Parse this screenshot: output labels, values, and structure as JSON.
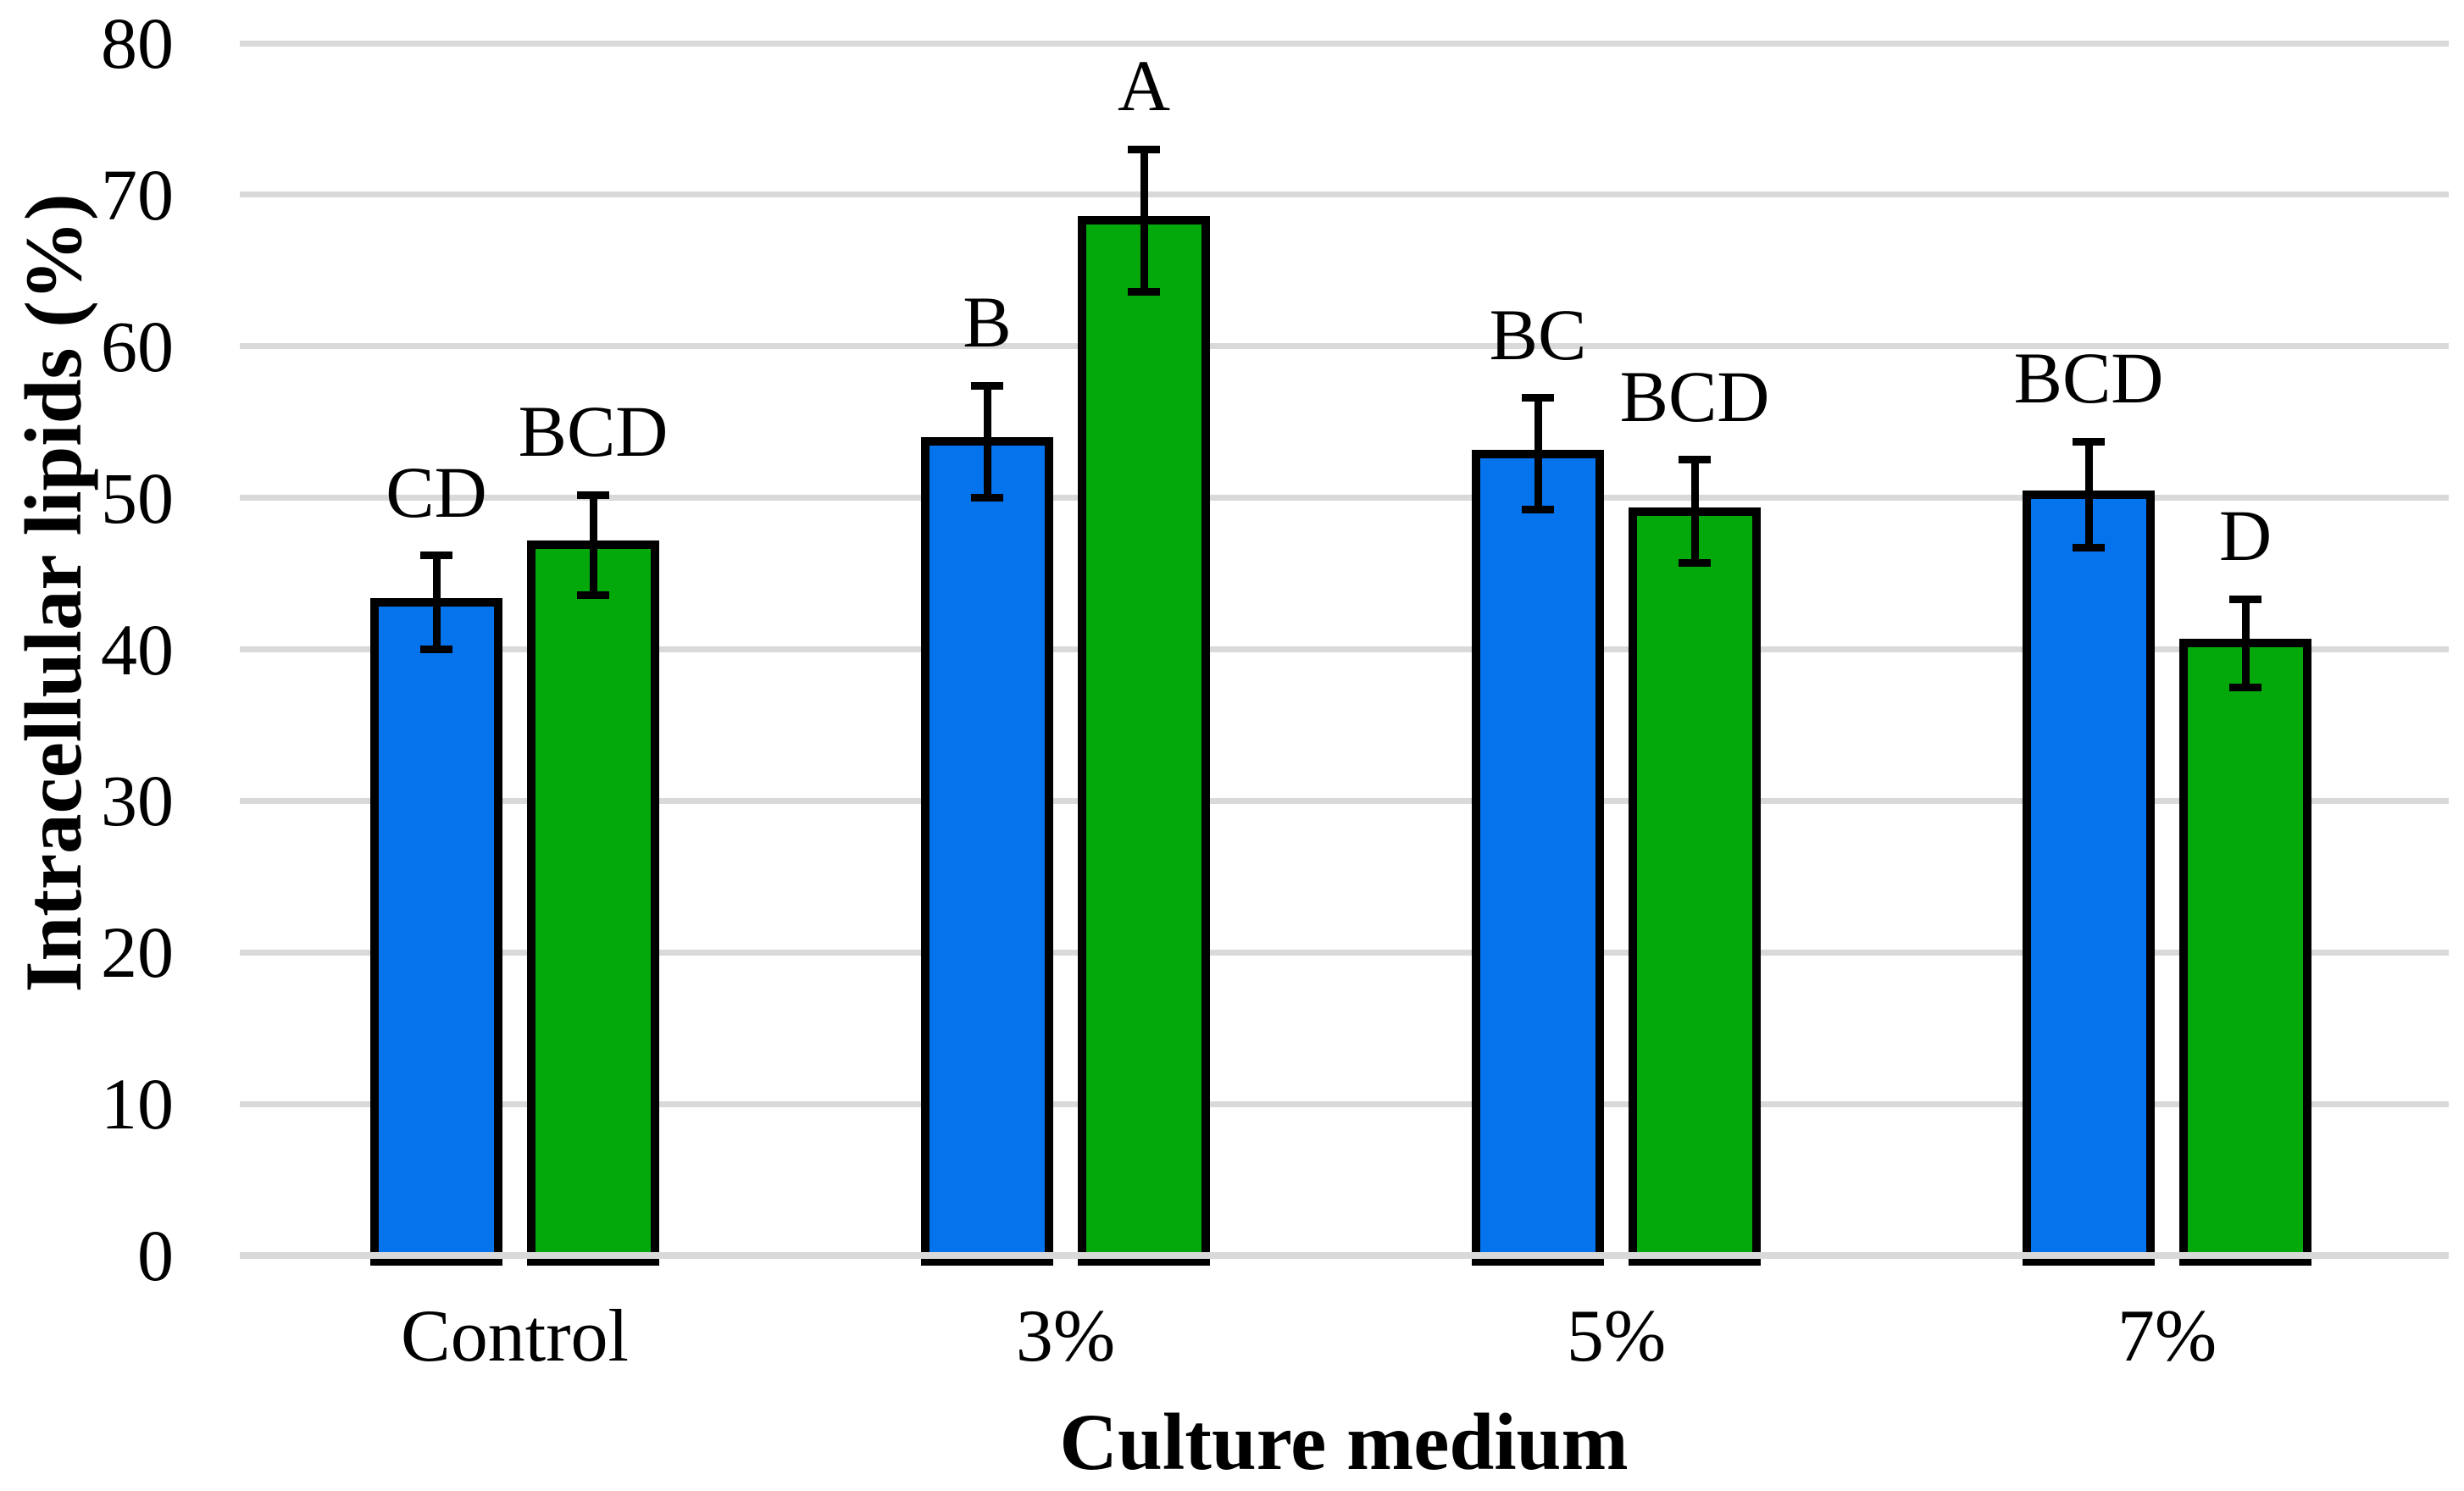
{
  "chart_data": {
    "type": "bar",
    "title": "",
    "xlabel": "Culture medium",
    "ylabel": "Intracellular lipids (%)",
    "categories": [
      "Control",
      "3%",
      "5%",
      "7%"
    ],
    "series": [
      {
        "name": "blue-series",
        "color": "#0473EC",
        "values": [
          43.1,
          53.7,
          52.9,
          50.2
        ],
        "error": [
          3.1,
          3.7,
          3.7,
          3.5
        ],
        "letters": [
          "CD",
          "B",
          "BC",
          "BCD"
        ]
      },
      {
        "name": "green-series",
        "color": "#03A80A",
        "values": [
          46.9,
          68.3,
          49.1,
          40.4
        ],
        "error": [
          3.3,
          4.7,
          3.4,
          2.9
        ],
        "letters": [
          "BCD",
          "A",
          "BCD",
          "D"
        ]
      }
    ],
    "ylim": [
      0,
      80
    ],
    "y_ticks": [
      0,
      10,
      20,
      30,
      40,
      50,
      60,
      70,
      80
    ],
    "grid": true,
    "legend": false,
    "gridline_color": "#D9D9D9",
    "bar_border_color": "#000000",
    "error_bar_color": "#000000",
    "background_color": "#FFFFFF"
  }
}
